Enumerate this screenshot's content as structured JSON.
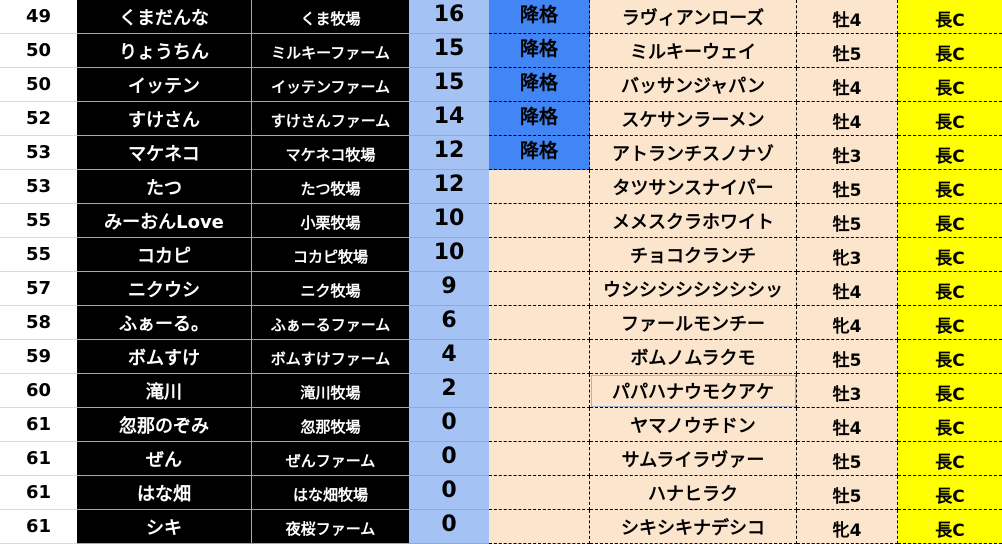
{
  "colors": {
    "rank_bg": "#ffffff",
    "name_bg": "#000000",
    "score_bg": "#a4c2f4",
    "demoted_bg": "#4285f4",
    "horse_bg": "#fce5cd",
    "distance_bg": "#ffff00"
  },
  "rows": [
    {
      "rank": "49",
      "name": "くまだんな",
      "farm": "くま牧場",
      "score": "16",
      "status": "降格",
      "horse": "ラヴィアンローズ",
      "sex_age": "牡4",
      "distance": "長C"
    },
    {
      "rank": "50",
      "name": "りょうちん",
      "farm": "ミルキーファーム",
      "score": "15",
      "status": "降格",
      "horse": "ミルキーウェイ",
      "sex_age": "牡5",
      "distance": "長C"
    },
    {
      "rank": "50",
      "name": "イッテン",
      "farm": "イッテンファーム",
      "score": "15",
      "status": "降格",
      "horse": "バッサンジャパン",
      "sex_age": "牡4",
      "distance": "長C"
    },
    {
      "rank": "52",
      "name": "すけさん",
      "farm": "すけさんファーム",
      "score": "14",
      "status": "降格",
      "horse": "スケサンラーメン",
      "sex_age": "牡4",
      "distance": "長C"
    },
    {
      "rank": "53",
      "name": "マケネコ",
      "farm": "マケネコ牧場",
      "score": "12",
      "status": "降格",
      "horse": "アトランチスノナゾ",
      "sex_age": "牡3",
      "distance": "長C"
    },
    {
      "rank": "53",
      "name": "たつ",
      "farm": "たつ牧場",
      "score": "12",
      "status": "",
      "horse": "タツサンスナイパー",
      "sex_age": "牡5",
      "distance": "長C"
    },
    {
      "rank": "55",
      "name": "みーおんLove",
      "farm": "小栗牧場",
      "score": "10",
      "status": "",
      "horse": "メメスクラホワイト",
      "sex_age": "牡5",
      "distance": "長C"
    },
    {
      "rank": "55",
      "name": "コカピ",
      "farm": "コカピ牧場",
      "score": "10",
      "status": "",
      "horse": "チョコクランチ",
      "sex_age": "牝3",
      "distance": "長C"
    },
    {
      "rank": "57",
      "name": "ニクウシ",
      "farm": "ニク牧場",
      "score": "9",
      "status": "",
      "horse": "ウシシシシシシシシッ",
      "sex_age": "牡4",
      "distance": "長C"
    },
    {
      "rank": "58",
      "name": "ふぁーる。",
      "farm": "ふぁーるファーム",
      "score": "6",
      "status": "",
      "horse": "ファールモンチー",
      "sex_age": "牝4",
      "distance": "長C"
    },
    {
      "rank": "59",
      "name": "ボムすけ",
      "farm": "ボムすけファーム",
      "score": "4",
      "status": "",
      "horse": "ボムノムラクモ",
      "sex_age": "牡5",
      "distance": "長C"
    },
    {
      "rank": "60",
      "name": "滝川",
      "farm": "滝川牧場",
      "score": "2",
      "status": "",
      "horse": "パパハナウモクアケ",
      "sex_age": "牡3",
      "distance": "長C",
      "selected": true
    },
    {
      "rank": "61",
      "name": "忽那のぞみ",
      "farm": "忽那牧場",
      "score": "0",
      "status": "",
      "horse": "ヤマノウチドン",
      "sex_age": "牡4",
      "distance": "長C"
    },
    {
      "rank": "61",
      "name": "ぜん",
      "farm": "ぜんファーム",
      "score": "0",
      "status": "",
      "horse": "サムライラヴァー",
      "sex_age": "牡5",
      "distance": "長C"
    },
    {
      "rank": "61",
      "name": "はな畑",
      "farm": "はな畑牧場",
      "score": "0",
      "status": "",
      "horse": "ハナヒラク",
      "sex_age": "牡5",
      "distance": "長C"
    },
    {
      "rank": "61",
      "name": "シキ",
      "farm": "夜桜ファーム",
      "score": "0",
      "status": "",
      "horse": "シキシキナデシコ",
      "sex_age": "牝4",
      "distance": "長C"
    }
  ]
}
